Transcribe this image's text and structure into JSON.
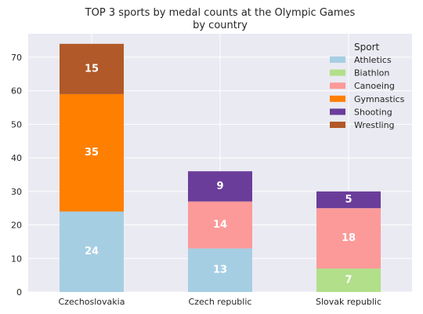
{
  "chart_data": {
    "type": "bar",
    "stacked": true,
    "title": "TOP 3 sports by medal counts at the Olympic Games",
    "subtitle": "by country",
    "categories": [
      "Czechoslovakia",
      "Czech republic",
      "Slovak republic"
    ],
    "ylim": [
      0,
      77
    ],
    "yticks": [
      0,
      10,
      20,
      30,
      40,
      50,
      60,
      70
    ],
    "grid": true,
    "legend_title": "Sport",
    "legend_position": "top-right",
    "series": [
      {
        "name": "Athletics",
        "color": "#a6cee3",
        "values": [
          24,
          13,
          0
        ]
      },
      {
        "name": "Biathlon",
        "color": "#b2df8a",
        "values": [
          0,
          0,
          7
        ]
      },
      {
        "name": "Canoeing",
        "color": "#fb9a99",
        "values": [
          0,
          14,
          18
        ]
      },
      {
        "name": "Gymnastics",
        "color": "#ff7f00",
        "values": [
          35,
          0,
          0
        ]
      },
      {
        "name": "Shooting",
        "color": "#6a3d9a",
        "values": [
          0,
          9,
          5
        ]
      },
      {
        "name": "Wrestling",
        "color": "#b15928",
        "values": [
          15,
          0,
          0
        ]
      }
    ]
  }
}
